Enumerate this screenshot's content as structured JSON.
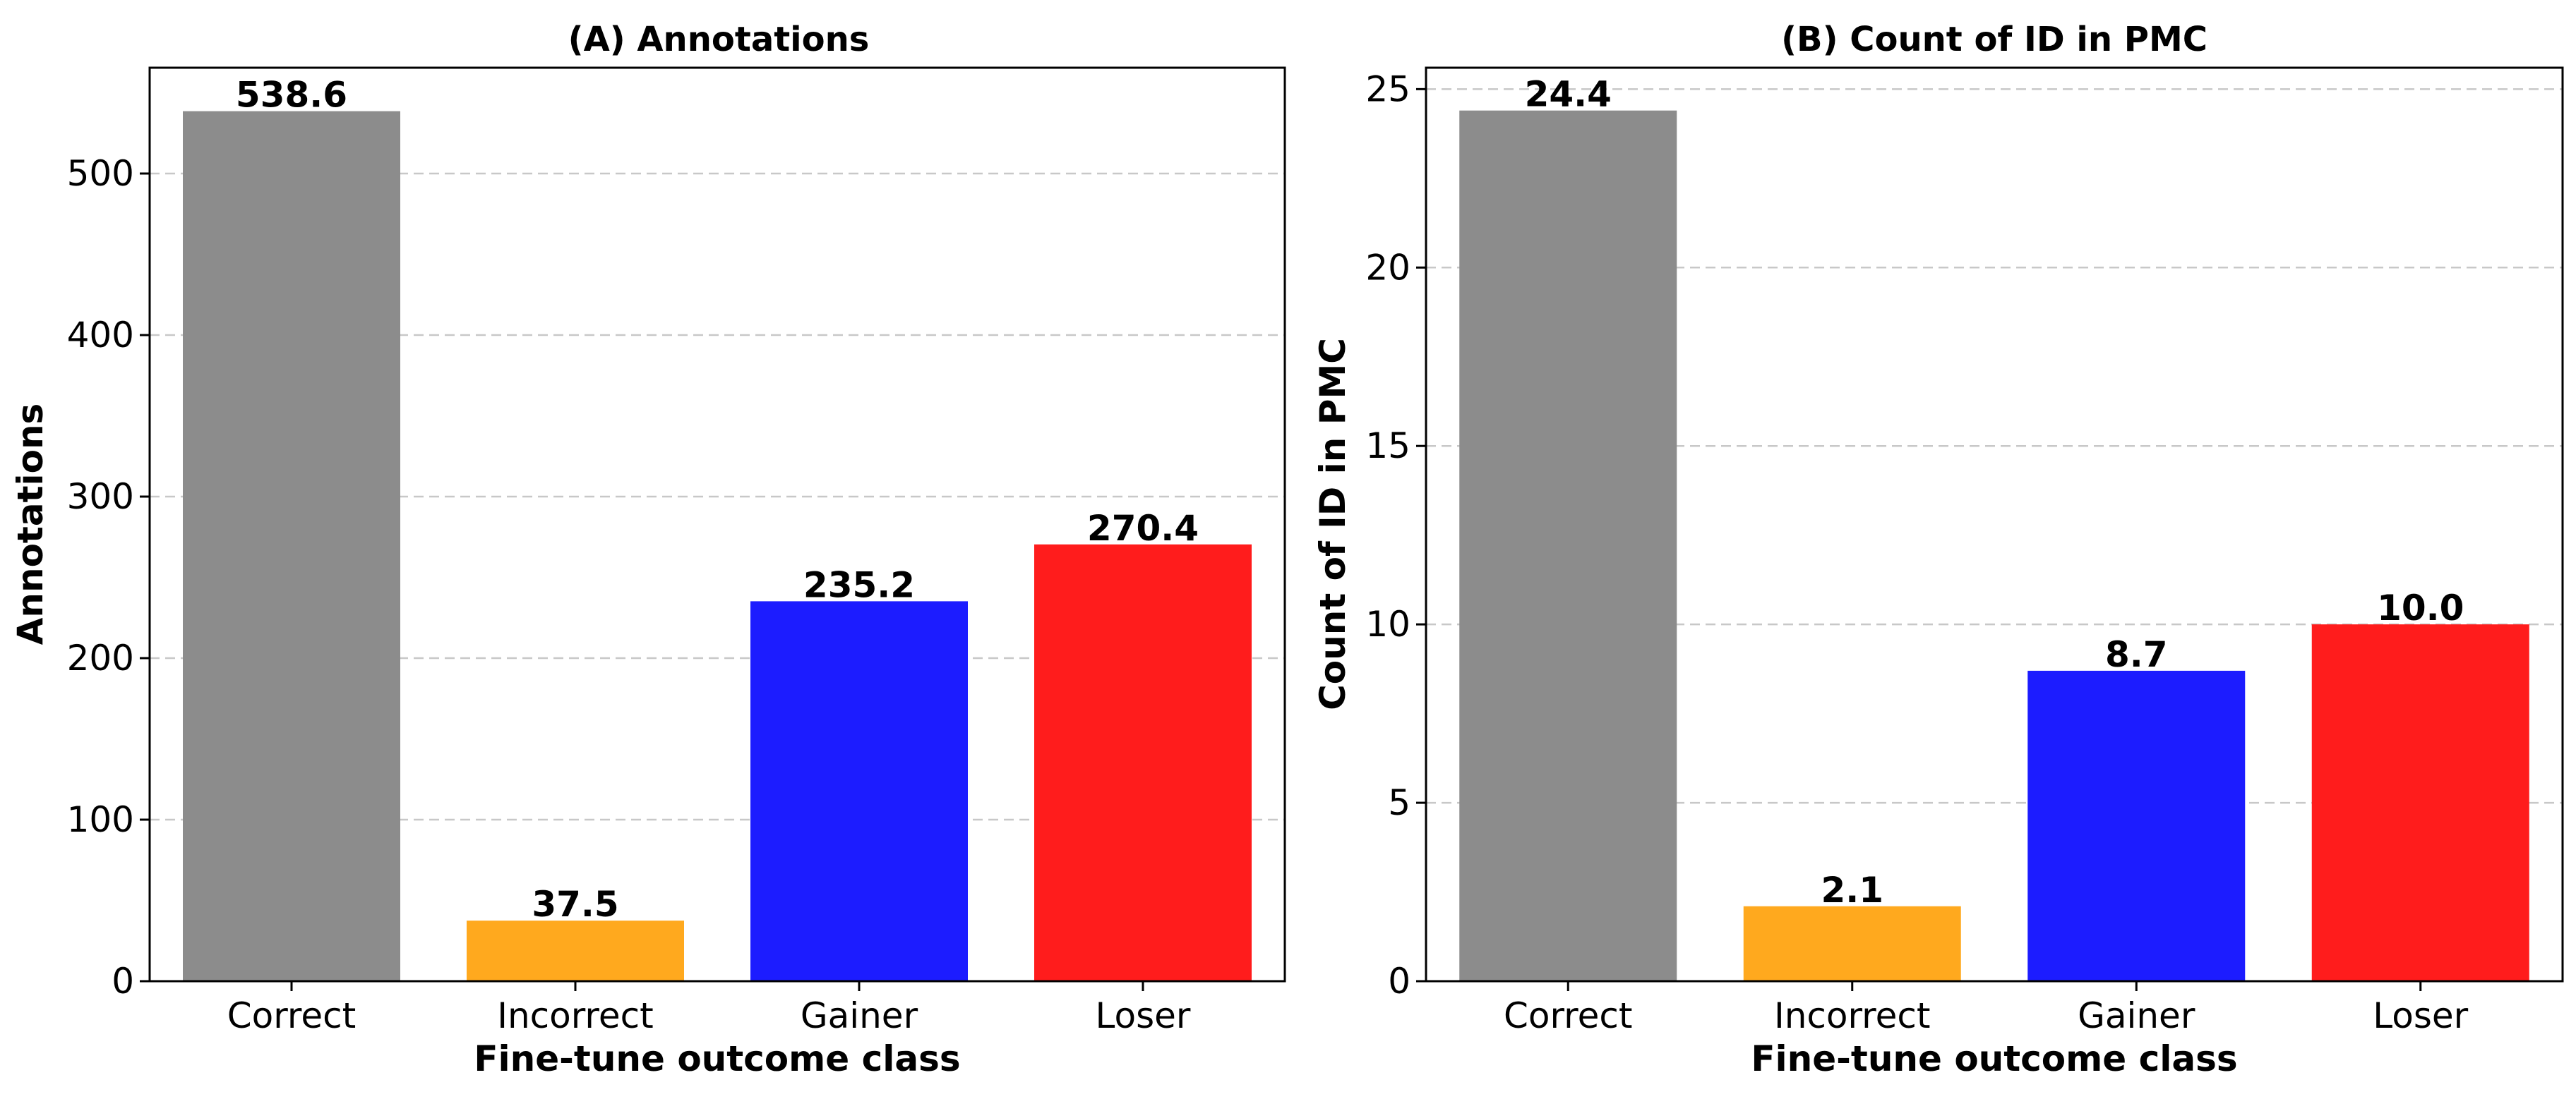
{
  "chart_data": [
    {
      "type": "bar",
      "title": "(A) Annotations",
      "xlabel": "Fine-tune outcome class",
      "ylabel": "Annotations",
      "categories": [
        "Correct",
        "Incorrect",
        "Gainer",
        "Loser"
      ],
      "values": [
        538.6,
        37.5,
        235.2,
        270.4
      ],
      "value_labels": [
        "538.6",
        "37.5",
        "235.2",
        "270.4"
      ],
      "colors": [
        "#8c8c8c",
        "#ffa91e",
        "#1c1cff",
        "#ff1c1c"
      ],
      "yticks": [
        0,
        100,
        200,
        300,
        400,
        500
      ],
      "ytick_labels": [
        "0",
        "100",
        "200",
        "300",
        "400",
        "500"
      ],
      "ylim": [
        0,
        565.5
      ],
      "grid": "y-dashed",
      "legend": "none"
    },
    {
      "type": "bar",
      "title": "(B) Count of ID in PMC",
      "xlabel": "Fine-tune outcome class",
      "ylabel": "Count of ID in PMC",
      "categories": [
        "Correct",
        "Incorrect",
        "Gainer",
        "Loser"
      ],
      "values": [
        24.4,
        2.1,
        8.7,
        10.0
      ],
      "value_labels": [
        "24.4",
        "2.1",
        "8.7",
        "10.0"
      ],
      "colors": [
        "#8c8c8c",
        "#ffa91e",
        "#1c1cff",
        "#ff1c1c"
      ],
      "yticks": [
        0,
        5,
        10,
        15,
        20,
        25
      ],
      "ytick_labels": [
        "0",
        "5",
        "10",
        "15",
        "20",
        "25"
      ],
      "ylim": [
        0,
        25.6
      ],
      "grid": "y-dashed",
      "legend": "none"
    }
  ]
}
